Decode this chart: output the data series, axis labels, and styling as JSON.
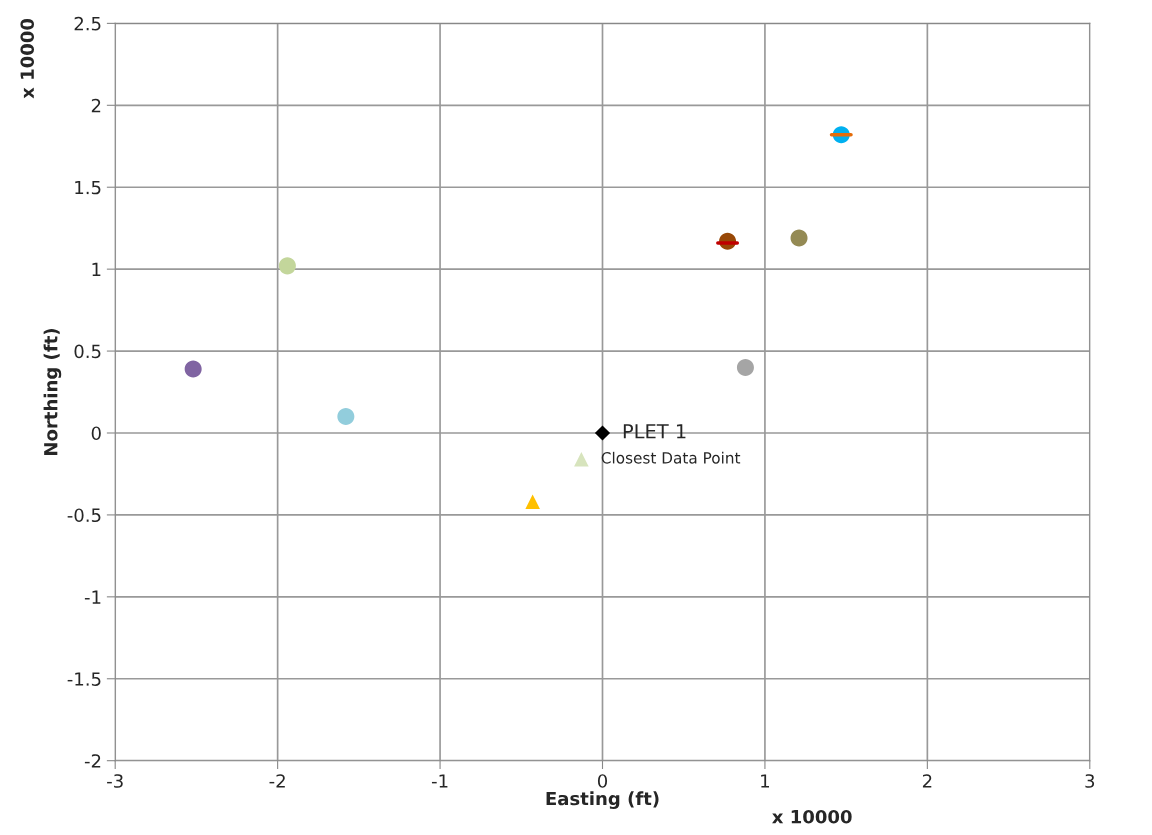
{
  "chart_data": {
    "type": "scatter",
    "xlabel": "Easting (ft)",
    "ylabel": "Northing (ft)",
    "xlim": [
      -3,
      3
    ],
    "xticks": [
      -3,
      -2,
      -1,
      0,
      1,
      2,
      3
    ],
    "ylim": [
      -2,
      2.5
    ],
    "yticks": [
      -2,
      -1.5,
      -1,
      -0.5,
      0,
      0.5,
      1,
      1.5,
      2,
      2.5
    ],
    "grid": true,
    "legend": false,
    "series": [
      {
        "color": "#8064a2",
        "marker": "circle",
        "x": [
          -2.52
        ],
        "values": [
          0.39
        ]
      },
      {
        "color": "#c3d69b",
        "marker": "circle",
        "x": [
          -1.94
        ],
        "values": [
          1.02
        ]
      },
      {
        "color": "#92cddc",
        "marker": "circle",
        "x": [
          -1.58
        ],
        "values": [
          0.1
        ]
      },
      {
        "color": "#ffc000",
        "marker": "triangle",
        "x": [
          -0.43
        ],
        "values": [
          -0.42
        ]
      },
      {
        "color": "#d7e4bd",
        "marker": "triangle",
        "x": [
          -0.13
        ],
        "values": [
          -0.16
        ]
      },
      {
        "color": "#000000",
        "marker": "diamond",
        "x": [
          0
        ],
        "values": [
          0
        ]
      },
      {
        "color": "#984807",
        "marker": "circle",
        "x": [
          0.77
        ],
        "values": [
          1.17
        ]
      },
      {
        "type": "line",
        "color": "#c00000",
        "x": [
          0.71,
          0.83
        ],
        "values": [
          1.16,
          1.16
        ]
      },
      {
        "color": "#948a54",
        "marker": "circle",
        "x": [
          1.21
        ],
        "values": [
          1.19
        ]
      },
      {
        "color": "#a5a5a5",
        "marker": "circle",
        "x": [
          0.88
        ],
        "values": [
          0.4
        ]
      },
      {
        "color": "#00b0f0",
        "marker": "circle",
        "x": [
          1.47
        ],
        "values": [
          1.82
        ]
      },
      {
        "type": "line",
        "color": "#e46c0a",
        "x": [
          1.41,
          1.53
        ],
        "values": [
          1.82,
          1.82
        ]
      }
    ],
    "annotations": [
      {
        "text": "PLET 1",
        "x": 0,
        "y": 0
      },
      {
        "text": "Closest Data Point",
        "x": -0.13,
        "y": -0.16
      },
      "x 10000",
      "x 10000"
    ]
  }
}
